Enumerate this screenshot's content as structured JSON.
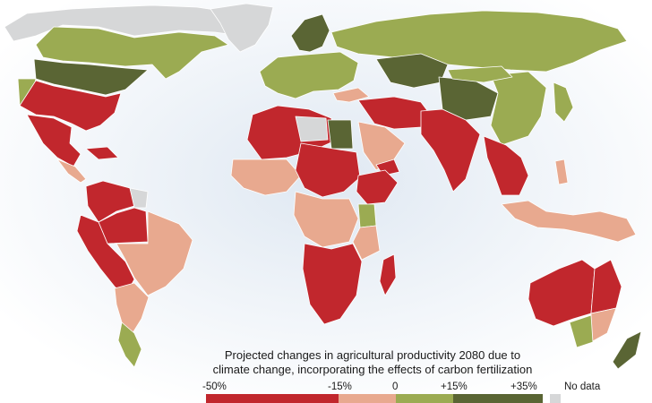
{
  "caption": {
    "line1": "Projected changes in agricultural productivity 2080 due to",
    "line2": "climate change, incorporating the effects of carbon fertilization"
  },
  "legend": {
    "labels": [
      "-50%",
      "-15%",
      "0",
      "+15%",
      "+35%"
    ],
    "nodata_label": "No data"
  },
  "colors": {
    "very_negative": "#c1272d",
    "negative": "#e8a98f",
    "positive": "#9bab52",
    "very_positive": "#5a6534",
    "no_data": "#d6d7d8",
    "ocean_glow": "#e8eff6"
  }
}
